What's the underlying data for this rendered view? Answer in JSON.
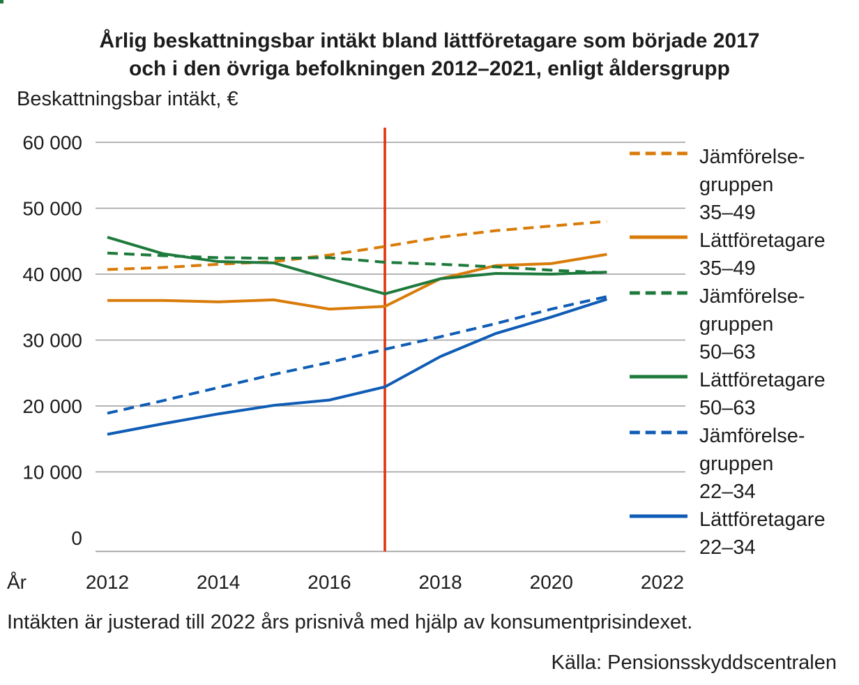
{
  "page": {
    "title_line1": "Årlig beskattningsbar intäkt bland lättföretagare som började 2017",
    "title_line2": "och i den övriga befolkningen 2012–2021, enligt åldersgrupp",
    "y_axis_title": "Beskattningsbar intäkt, €",
    "x_axis_title": "År",
    "footnote": "Intäkten är justerad till 2022 års prisnivå med hjälp av konsumentprisindexet.",
    "source": "Källa: Pensionsskyddscentralen"
  },
  "colors": {
    "orange": "#D97B08",
    "green": "#1E7A3C",
    "blue": "#0F5CB5",
    "red_vline": "#E1330F",
    "grid": "#9C9C9C",
    "text": "#1C1C1C"
  },
  "chart_data": {
    "type": "line",
    "title": "Årlig beskattningsbar intäkt bland lättföretagare som började 2017 och i den övriga befolkningen 2012–2021, enligt åldersgrupp",
    "xlabel": "År",
    "ylabel": "Beskattningsbar intäkt, €",
    "x": [
      2012,
      2013,
      2014,
      2015,
      2016,
      2017,
      2018,
      2019,
      2020,
      2021
    ],
    "series": [
      {
        "name": "Jämförelsegruppen 35–49",
        "color": "#D97B08",
        "dashed": true,
        "values": [
          40700,
          41000,
          41500,
          41900,
          42900,
          44200,
          45600,
          46600,
          47300,
          48000
        ]
      },
      {
        "name": "Lättföretagare 35–49",
        "color": "#D97B08",
        "dashed": false,
        "values": [
          36000,
          36000,
          35800,
          36100,
          34700,
          35100,
          39300,
          41300,
          41600,
          43000
        ]
      },
      {
        "name": "Jämförelsegruppen 50–63",
        "color": "#1E7A3C",
        "dashed": true,
        "values": [
          43200,
          42800,
          42500,
          42400,
          42500,
          41800,
          41500,
          41100,
          40600,
          40200
        ]
      },
      {
        "name": "Lättföretagare 50–63",
        "color": "#1E7A3C",
        "dashed": false,
        "values": [
          45600,
          43100,
          41900,
          41700,
          39300,
          37000,
          39300,
          40100,
          40000,
          40300
        ]
      },
      {
        "name": "Jämförelsegruppen 22–34",
        "color": "#0F5CB5",
        "dashed": true,
        "values": [
          18900,
          20800,
          22800,
          24800,
          26600,
          28600,
          30500,
          32500,
          34700,
          36600
        ]
      },
      {
        "name": "Lättföretagare 22–34",
        "color": "#0F5CB5",
        "dashed": false,
        "values": [
          15700,
          17300,
          18800,
          20100,
          20900,
          22900,
          27500,
          31000,
          33500,
          36200
        ]
      }
    ],
    "yticks": [
      0,
      10000,
      20000,
      30000,
      40000,
      50000,
      60000
    ],
    "ytick_labels": [
      "0",
      "10 000",
      "20 000",
      "30 000",
      "40 000",
      "50 000",
      "60 000"
    ],
    "xticks": [
      2012,
      2014,
      2016,
      2018,
      2020,
      2022
    ],
    "xtick_labels": [
      "2012",
      "2014",
      "2016",
      "2018",
      "2020",
      "2022"
    ],
    "ylim": [
      0,
      60000
    ],
    "xlim": [
      2012,
      2022
    ],
    "grid": true,
    "legend_position": "right",
    "vline": {
      "x": 2017,
      "color": "#E1330F"
    }
  },
  "legend": {
    "items": [
      {
        "series": 0,
        "label_lines": [
          "Jämförelse-",
          "gruppen",
          "35–49"
        ]
      },
      {
        "series": 1,
        "label_lines": [
          "Lättföretagare",
          "35–49"
        ]
      },
      {
        "series": 2,
        "label_lines": [
          "Jämförelse-",
          "gruppen",
          "50–63"
        ]
      },
      {
        "series": 3,
        "label_lines": [
          "Lättföretagare",
          "50–63"
        ]
      },
      {
        "series": 4,
        "label_lines": [
          "Jämförelse-",
          "gruppen",
          "22–34"
        ]
      },
      {
        "series": 5,
        "label_lines": [
          "Lättföretagare",
          "22–34"
        ]
      }
    ]
  }
}
